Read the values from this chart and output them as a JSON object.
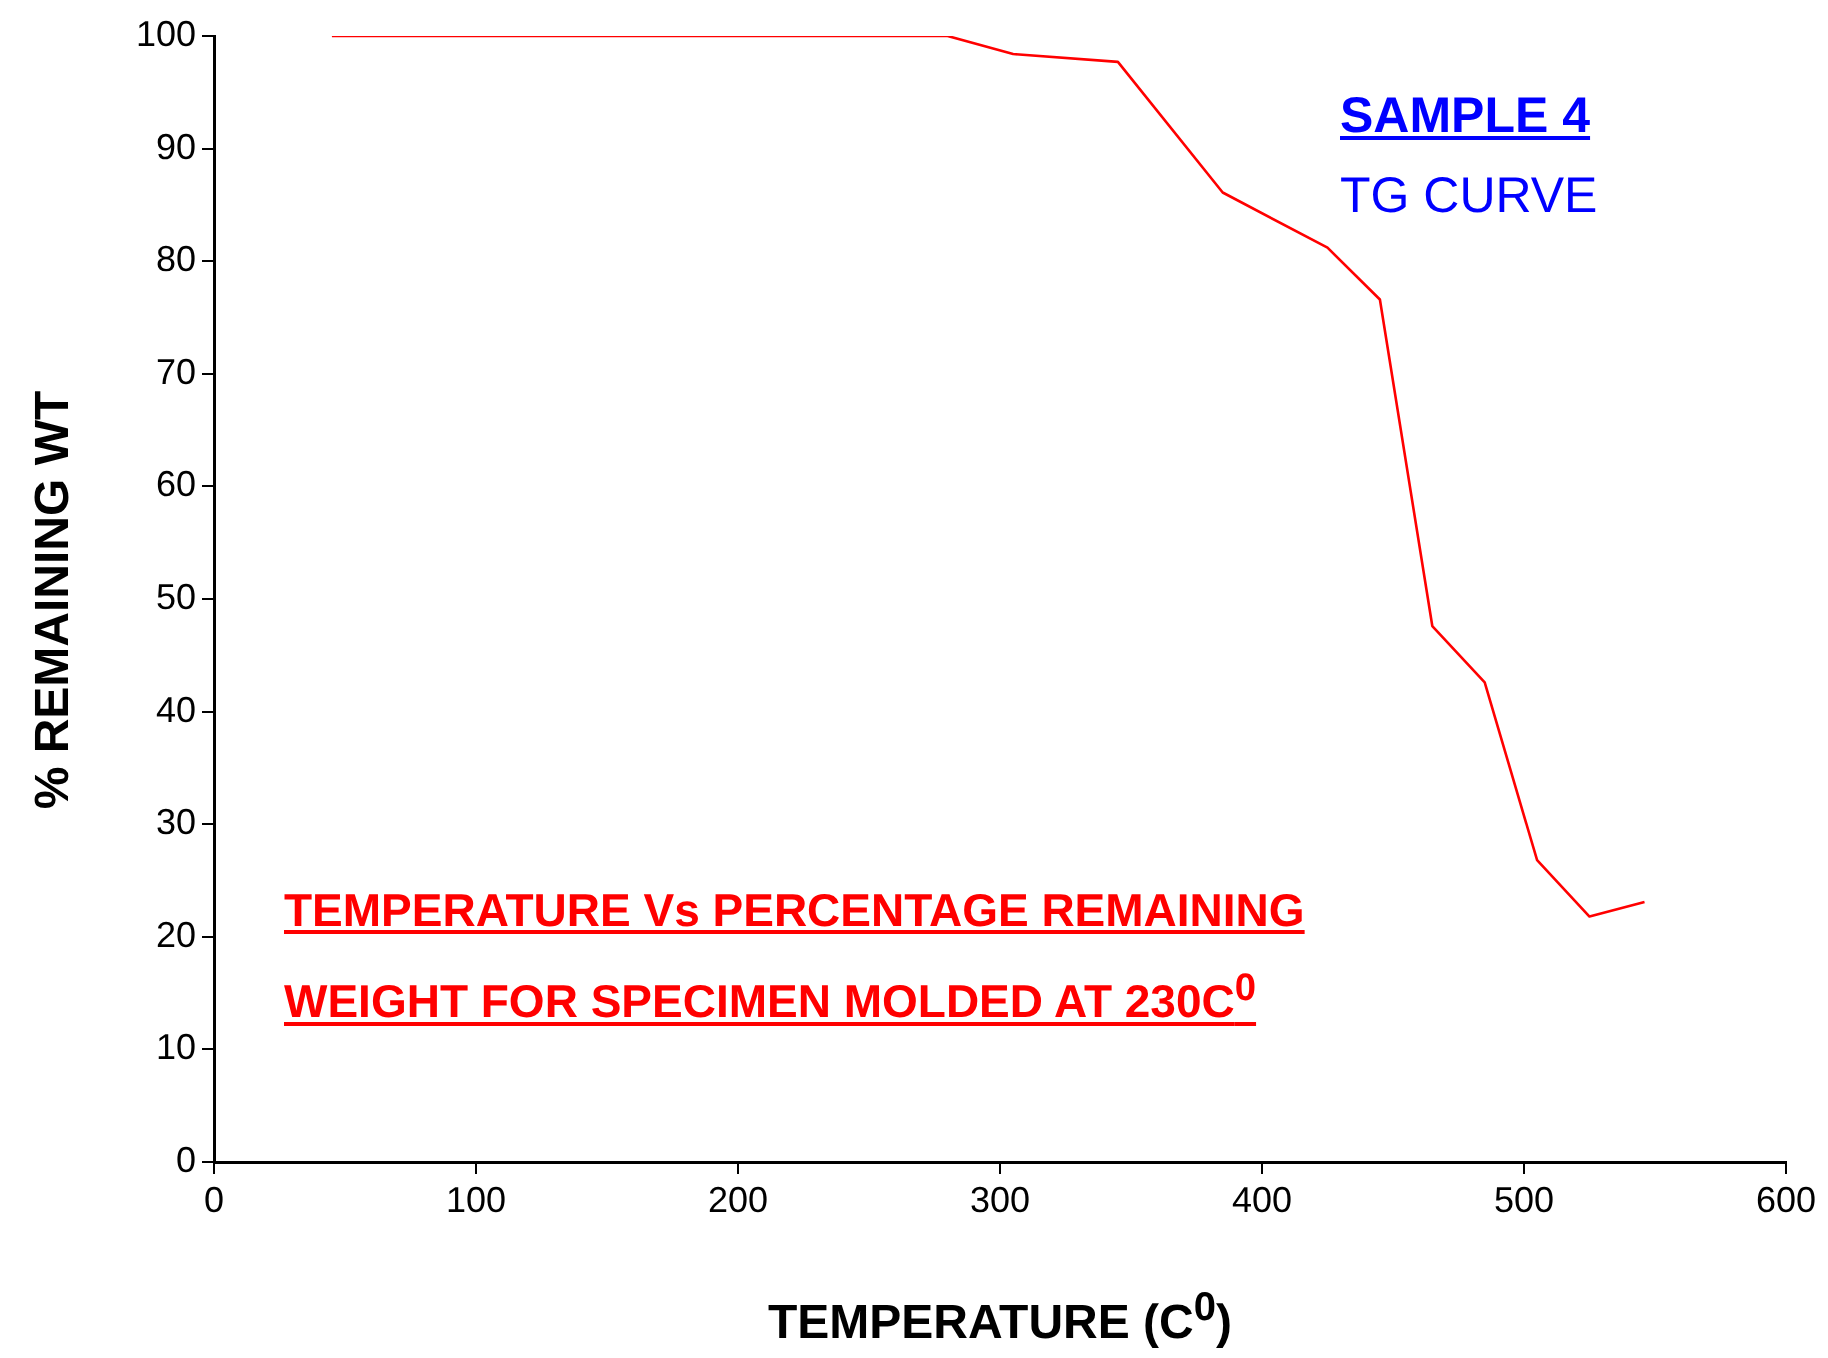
{
  "chart_data": {
    "type": "line",
    "xlabel": "TEMPERATURE (C$^{0}$)",
    "ylabel": "% REMAINING WT",
    "annotations": [
      "SAMPLE 4",
      "TG CURVE",
      "TEMPERATURE Vs PERCENTAGE REMAINING",
      "WEIGHT FOR SPECIMEN MOLDED AT 230C$^{0}$"
    ],
    "xlim": [
      0,
      600
    ],
    "xticks": [
      0,
      100,
      200,
      300,
      400,
      500,
      600
    ],
    "ylim": [
      0,
      100
    ],
    "yticks": [
      0,
      10,
      20,
      30,
      40,
      50,
      60,
      70,
      80,
      90,
      100
    ],
    "grid": false,
    "legend": false,
    "marker": "none",
    "line_style": "solid",
    "series": [
      {
        "color": "#ff0000",
        "x": [
          45,
          280,
          305,
          345,
          385,
          425,
          445,
          465,
          485,
          505,
          525,
          546
        ],
        "values": [
          100,
          100,
          98.4,
          97.7,
          86.1,
          81.2,
          76.6,
          47.6,
          42.6,
          26.8,
          21.8,
          23.1
        ]
      }
    ]
  }
}
